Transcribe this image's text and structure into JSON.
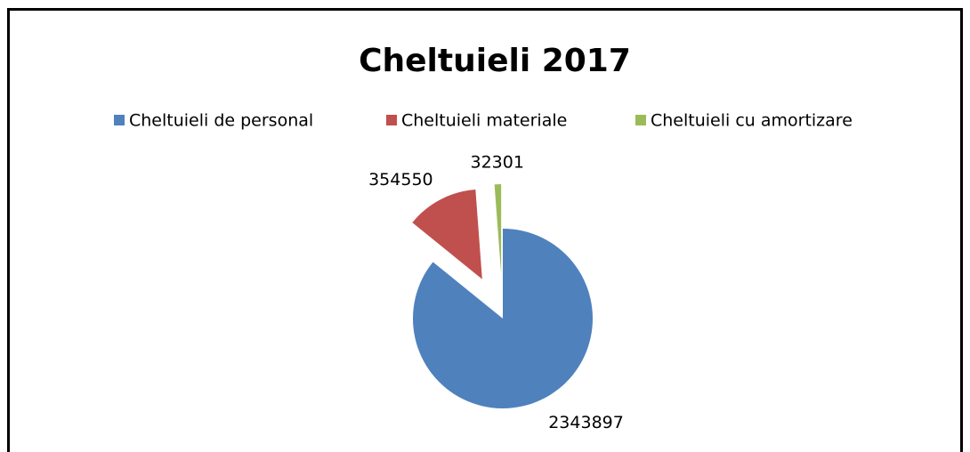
{
  "chart_data": {
    "type": "pie",
    "title": "Cheltuieli 2017",
    "categories": [
      "Cheltuieli de personal",
      "Cheltuieli materiale",
      "Cheltuieli cu amortizare"
    ],
    "values": [
      2343897,
      354550,
      32301
    ],
    "colors": [
      "#4f81bd",
      "#c0504d",
      "#9bbb59"
    ],
    "exploded": [
      false,
      true,
      true
    ],
    "legend": "top"
  }
}
